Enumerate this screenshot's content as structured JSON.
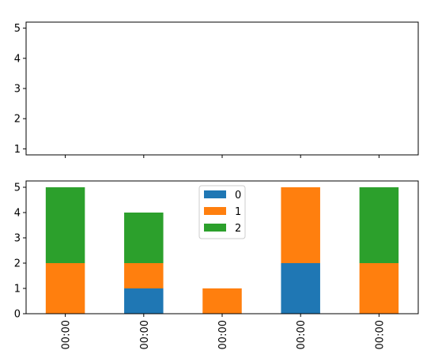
{
  "chart_data": [
    {
      "type": "scatter",
      "title": "",
      "xlabel": "",
      "ylabel": "",
      "yticks": [
        "1",
        "2",
        "3",
        "4",
        "5"
      ],
      "ylim": [
        0.8,
        5.2
      ],
      "series": []
    },
    {
      "type": "bar",
      "stacked": true,
      "title": "",
      "xlabel": "",
      "ylabel": "",
      "categories": [
        "00:00",
        "00:00",
        "00:00",
        "00:00",
        "00:00"
      ],
      "yticks": [
        "0",
        "1",
        "2",
        "3",
        "4",
        "5"
      ],
      "ylim": [
        0,
        5.25
      ],
      "legend_position": "top-center",
      "series": [
        {
          "name": "0",
          "color": "#1f77b4",
          "values": [
            0,
            1,
            0,
            2,
            0
          ]
        },
        {
          "name": "1",
          "color": "#ff7f0e",
          "values": [
            2,
            1,
            1,
            3,
            2
          ]
        },
        {
          "name": "2",
          "color": "#2ca02c",
          "values": [
            3,
            2,
            0,
            0,
            3
          ]
        }
      ]
    }
  ]
}
